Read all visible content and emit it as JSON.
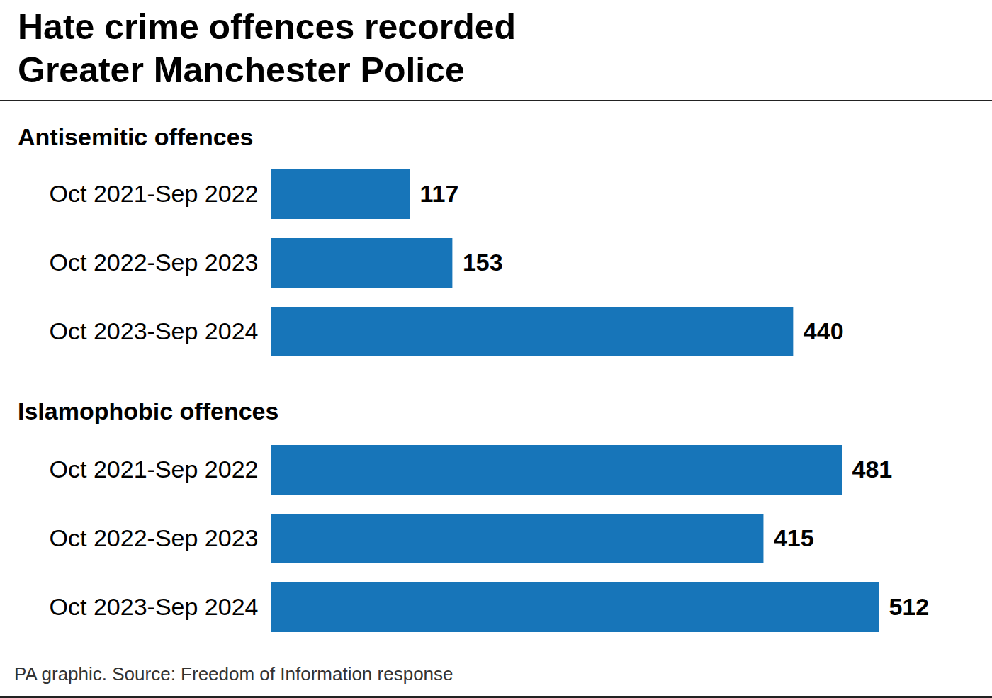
{
  "title": "Hate crime offences recorded\nGreater Manchester Police",
  "caption": "PA graphic. Source: Freedom of Information response",
  "chart_data": [
    {
      "type": "bar",
      "title": "Antisemitic offences",
      "orientation": "horizontal",
      "categories": [
        "Oct 2021-Sep 2022",
        "Oct 2022-Sep 2023",
        "Oct 2023-Sep 2024"
      ],
      "values": [
        117,
        153,
        440
      ],
      "color": "#1775b9",
      "xlim": [
        0,
        512
      ],
      "data_labels": true,
      "tick_labels": "y",
      "grid": false
    },
    {
      "type": "bar",
      "title": "Islamophobic offences",
      "orientation": "horizontal",
      "categories": [
        "Oct 2021-Sep 2022",
        "Oct 2022-Sep 2023",
        "Oct 2023-Sep 2024"
      ],
      "values": [
        481,
        415,
        512
      ],
      "color": "#1775b9",
      "xlim": [
        0,
        512
      ],
      "data_labels": true,
      "tick_labels": "y",
      "grid": false
    }
  ]
}
